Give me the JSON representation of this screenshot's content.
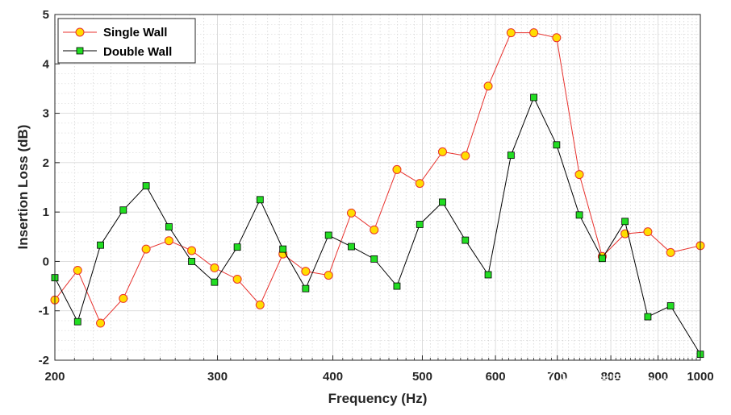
{
  "chart_data": {
    "type": "line",
    "xscale": "log",
    "xlim": [
      200,
      1000
    ],
    "ylim": [
      -2,
      5
    ],
    "xlabel": "Frequency (Hz)",
    "ylabel": "Insertion Loss (dB)",
    "xticks": [
      200,
      300,
      400,
      500,
      600,
      700,
      800,
      900,
      1000
    ],
    "xtick_labels": [
      "200",
      "300",
      "400",
      "500",
      "600",
      "700",
      "800",
      "900",
      "1000"
    ],
    "yticks": [
      -2,
      -1,
      0,
      1,
      2,
      3,
      4,
      5
    ],
    "grid": true,
    "legend_position": "top-left",
    "x": [
      200,
      211.7,
      224.1,
      237.2,
      251.1,
      265.8,
      281.3,
      297.8,
      315.2,
      333.6,
      353.2,
      373.8,
      395.7,
      418.9,
      443.4,
      469.3,
      496.8,
      525.8,
      556.6,
      589.2,
      623.7,
      660.2,
      698.8,
      739.6,
      783,
      828.8,
      877.3,
      928.6,
      1000
    ],
    "series": [
      {
        "name": "Single Wall",
        "color": "#e8312d",
        "marker": "circle",
        "marker_color": "#ffdd00",
        "values": [
          -0.78,
          -0.18,
          -1.25,
          -0.75,
          0.25,
          0.42,
          0.22,
          -0.13,
          -0.36,
          -0.88,
          0.15,
          -0.2,
          -0.28,
          0.98,
          0.64,
          1.86,
          1.58,
          2.22,
          2.14,
          3.55,
          4.63,
          4.63,
          4.53,
          1.76,
          0.1,
          0.56,
          0.6,
          0.18,
          0.32
        ]
      },
      {
        "name": "Double Wall",
        "color": "#000000",
        "marker": "square",
        "marker_color": "#22dd22",
        "values": [
          -0.33,
          -1.22,
          0.33,
          1.04,
          1.53,
          0.7,
          0.0,
          -0.42,
          0.29,
          1.25,
          0.25,
          -0.55,
          0.53,
          0.3,
          0.05,
          -0.5,
          0.75,
          1.2,
          0.43,
          -0.27,
          2.15,
          3.32,
          2.36,
          0.94,
          0.06,
          0.81,
          -1.12,
          -0.9,
          -1.88
        ]
      }
    ]
  },
  "watermark": {
    "left_text": "六敢跨境",
    "right_text": "微信号: Prosynx"
  }
}
